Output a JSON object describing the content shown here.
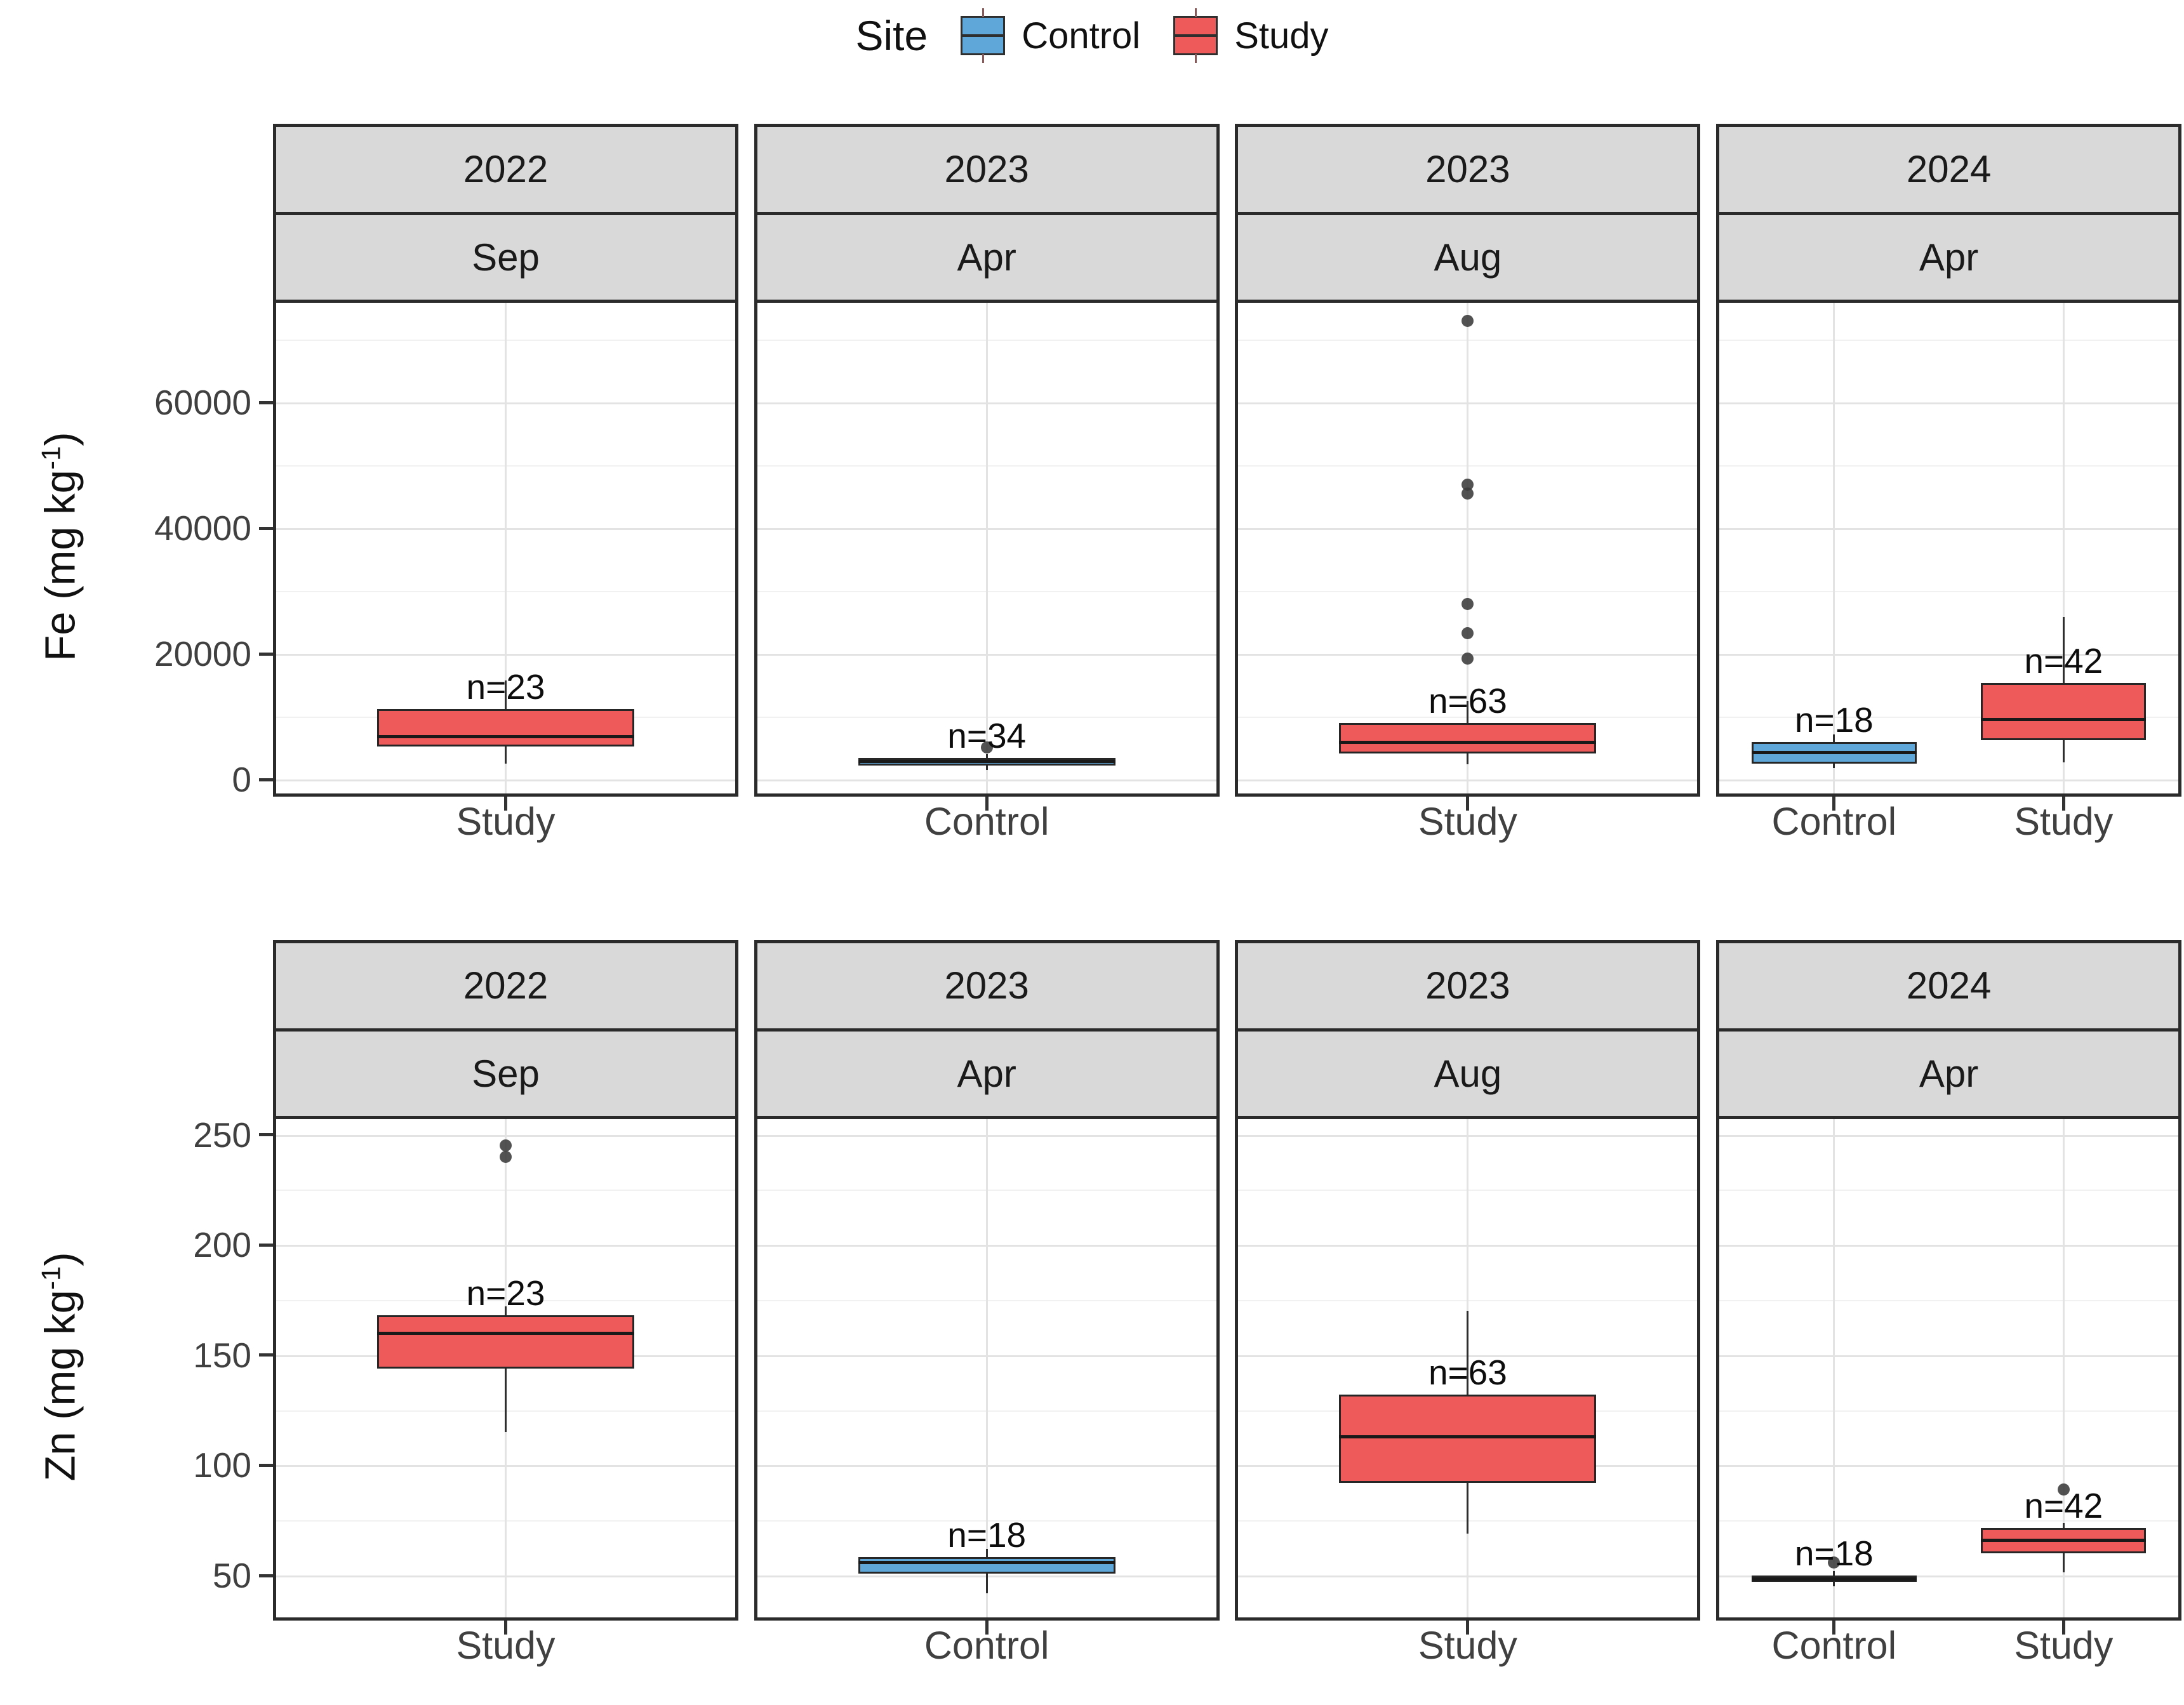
{
  "legend": {
    "title": "Site",
    "items": [
      {
        "label": "Control",
        "color": "#5fa6d9"
      },
      {
        "label": "Study",
        "color": "#ee5a5a"
      }
    ]
  },
  "styles": {
    "border": "#2b2b2b",
    "strip_bg": "#d9d9d9",
    "grid_major": "#e3e3e3",
    "grid_minor": "#f1f1f1",
    "outlier": "#3a3a3a",
    "median": "#191919"
  },
  "chart_data": {
    "type": "boxplot",
    "facets": "grid rows = analyte, cols = year/month, grid on, legend top-center",
    "rows": [
      {
        "ylabel_base": "Fe (mg kg",
        "ylabel_sup": "-1",
        "ylabel_close": ")",
        "ylim": [
          -2200,
          76400
        ],
        "yticks": [
          {
            "v": 0,
            "label": "0"
          },
          {
            "v": 20000,
            "label": "20000"
          },
          {
            "v": 40000,
            "label": "40000"
          },
          {
            "v": 60000,
            "label": "60000"
          }
        ],
        "yminor": [
          10000,
          30000,
          50000,
          70000
        ],
        "panels": [
          {
            "year": "2022",
            "month": "Sep",
            "boxes": [
              {
                "site": "Study",
                "x": 0.5,
                "w": 0.56,
                "n_label": "n=23",
                "low": 2500,
                "q1": 5300,
                "median": 6800,
                "q3": 11200,
                "high": 15800,
                "outliers": []
              }
            ]
          },
          {
            "year": "2023",
            "month": "Apr",
            "boxes": [
              {
                "site": "Control",
                "x": 0.5,
                "w": 0.56,
                "n_label": "n=34",
                "low": 1500,
                "q1": 2250,
                "median": 2950,
                "q3": 3450,
                "high": 4100,
                "outliers": [
                  5100
                ]
              }
            ]
          },
          {
            "year": "2023",
            "month": "Aug",
            "boxes": [
              {
                "site": "Study",
                "x": 0.5,
                "w": 0.56,
                "n_label": "n=63",
                "low": 2400,
                "q1": 4200,
                "median": 5900,
                "q3": 9000,
                "high": 12500,
                "outliers": [
                  73000,
                  47000,
                  45500,
                  28000,
                  23300,
                  19300
                ]
              }
            ]
          },
          {
            "year": "2024",
            "month": "Apr",
            "boxes": [
              {
                "site": "Control",
                "x": 0.25,
                "w": 0.36,
                "n_label": "n=18",
                "low": 1800,
                "q1": 2500,
                "median": 4300,
                "q3": 6000,
                "high": 7200,
                "outliers": []
              },
              {
                "site": "Study",
                "x": 0.75,
                "w": 0.36,
                "n_label": "n=42",
                "low": 2700,
                "q1": 6300,
                "median": 9600,
                "q3": 15400,
                "high": 25900,
                "outliers": []
              }
            ]
          }
        ]
      },
      {
        "ylabel_base": "Zn (mg kg",
        "ylabel_sup": "-1",
        "ylabel_close": ")",
        "ylim": [
          31,
          258.5
        ],
        "yticks": [
          {
            "v": 50,
            "label": "50"
          },
          {
            "v": 100,
            "label": "100"
          },
          {
            "v": 150,
            "label": "150"
          },
          {
            "v": 200,
            "label": "200"
          },
          {
            "v": 250,
            "label": "250"
          }
        ],
        "yminor": [
          75,
          125,
          175,
          225
        ],
        "panels": [
          {
            "year": "2022",
            "month": "Sep",
            "boxes": [
              {
                "site": "Study",
                "x": 0.5,
                "w": 0.56,
                "n_label": "n=23",
                "low": 115,
                "q1": 144,
                "median": 160,
                "q3": 168,
                "high": 172,
                "outliers": [
                  245,
                  240
                ]
              }
            ]
          },
          {
            "year": "2023",
            "month": "Apr",
            "boxes": [
              {
                "site": "Control",
                "x": 0.5,
                "w": 0.56,
                "n_label": "n=18",
                "low": 42,
                "q1": 51,
                "median": 56,
                "q3": 58.5,
                "high": 62,
                "outliers": []
              }
            ]
          },
          {
            "year": "2023",
            "month": "Aug",
            "boxes": [
              {
                "site": "Study",
                "x": 0.5,
                "w": 0.56,
                "n_label": "n=63",
                "low": 69,
                "q1": 92,
                "median": 113,
                "q3": 132,
                "high": 170,
                "outliers": []
              }
            ]
          },
          {
            "year": "2024",
            "month": "Apr",
            "boxes": [
              {
                "site": "Control",
                "x": 0.25,
                "w": 0.36,
                "n_label": "n=18",
                "low": 45,
                "q1": 47,
                "median": 48.5,
                "q3": 50,
                "high": 52,
                "outliers": [
                  56
                ]
              },
              {
                "site": "Study",
                "x": 0.75,
                "w": 0.36,
                "n_label": "n=42",
                "low": 51.5,
                "q1": 60,
                "median": 66,
                "q3": 71.5,
                "high": 74,
                "outliers": [
                  89
                ]
              }
            ]
          }
        ]
      }
    ]
  }
}
